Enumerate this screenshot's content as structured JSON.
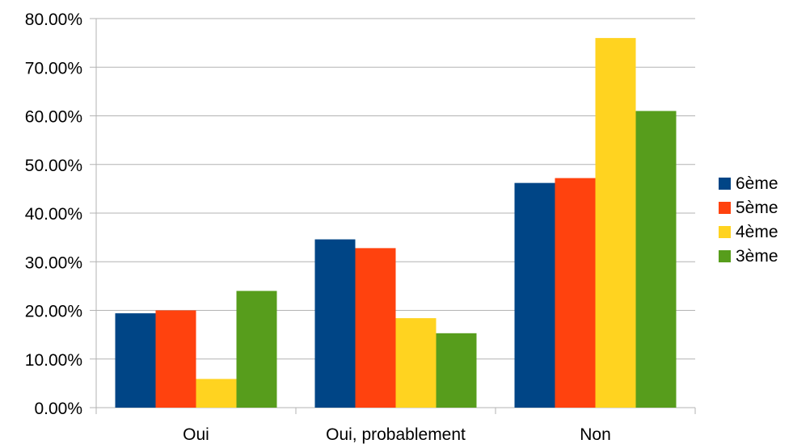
{
  "chart_data": {
    "type": "bar",
    "categories": [
      "Oui",
      "Oui, probablement",
      "Non"
    ],
    "series": [
      {
        "name": "6ème",
        "color": "#004586",
        "values": [
          19.4,
          34.6,
          46.2
        ]
      },
      {
        "name": "5ème",
        "color": "#ff420e",
        "values": [
          20.0,
          32.8,
          47.2
        ]
      },
      {
        "name": "4ème",
        "color": "#ffd320",
        "values": [
          5.9,
          18.4,
          76.0
        ]
      },
      {
        "name": "3ème",
        "color": "#579d1c",
        "values": [
          24.0,
          15.3,
          61.0
        ]
      }
    ],
    "ylim": [
      0,
      80
    ],
    "yticks": [
      0,
      10,
      20,
      30,
      40,
      50,
      60,
      70,
      80
    ],
    "ytick_labels": [
      "0.00%",
      "10.00%",
      "20.00%",
      "30.00%",
      "40.00%",
      "50.00%",
      "60.00%",
      "70.00%",
      "80.00%"
    ],
    "grid": true,
    "legend_position": "right"
  }
}
